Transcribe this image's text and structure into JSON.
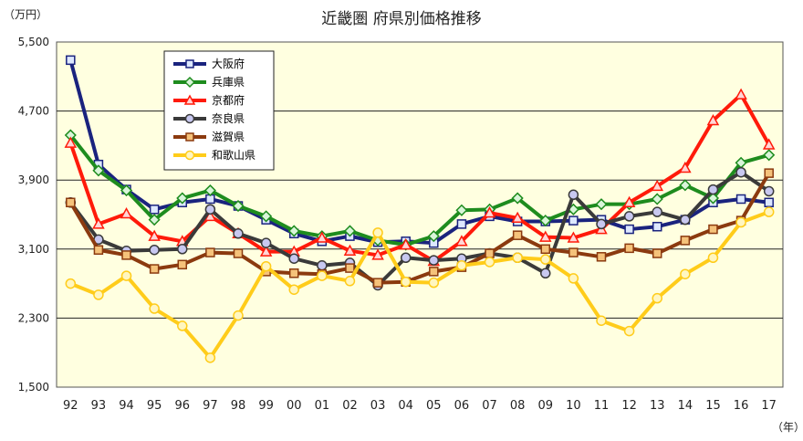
{
  "chart_data": {
    "type": "line",
    "title": "近畿圏 府県別価格推移",
    "y_unit": "（万円）",
    "x_unit": "（年）",
    "ylim": [
      1500,
      5500
    ],
    "y_ticks": [
      1500,
      2300,
      3100,
      3900,
      4700,
      5500
    ],
    "y_tick_labels": [
      "1,500",
      "2,300",
      "3,100",
      "3,900",
      "4,700",
      "5,500"
    ],
    "grid": true,
    "legend_position": "top-left",
    "categories": [
      "92",
      "93",
      "94",
      "95",
      "96",
      "97",
      "98",
      "99",
      "00",
      "01",
      "02",
      "03",
      "04",
      "05",
      "06",
      "07",
      "08",
      "09",
      "10",
      "11",
      "12",
      "13",
      "14",
      "15",
      "16",
      "17"
    ],
    "series": [
      {
        "name": "大阪府",
        "color": "#1a237e",
        "marker": "square",
        "marker_fill": "#dde8ff",
        "values": [
          5290,
          4080,
          3790,
          3560,
          3640,
          3680,
          3600,
          3440,
          3280,
          3190,
          3250,
          3180,
          3190,
          3170,
          3390,
          3480,
          3420,
          3420,
          3430,
          3440,
          3330,
          3360,
          3440,
          3640,
          3680,
          3640
        ]
      },
      {
        "name": "兵庫県",
        "color": "#1e8c1e",
        "marker": "diamond",
        "marker_fill": "#d9f5d9",
        "values": [
          4420,
          4010,
          3780,
          3440,
          3690,
          3780,
          3600,
          3480,
          3310,
          3250,
          3310,
          3200,
          3150,
          3250,
          3550,
          3560,
          3690,
          3430,
          3560,
          3620,
          3620,
          3680,
          3840,
          3690,
          4100,
          4190
        ]
      },
      {
        "name": "京都府",
        "color": "#ff1a0a",
        "marker": "triangle",
        "marker_fill": "#ffd6d6",
        "values": [
          4330,
          3390,
          3510,
          3250,
          3190,
          3480,
          3280,
          3070,
          3070,
          3230,
          3080,
          3030,
          3150,
          2960,
          3190,
          3520,
          3460,
          3240,
          3230,
          3330,
          3640,
          3830,
          4040,
          4590,
          4890,
          4310
        ]
      },
      {
        "name": "奈良県",
        "color": "#3a3a3a",
        "marker": "circle",
        "marker_fill": "#c8c8f0",
        "values": [
          3640,
          3210,
          3080,
          3090,
          3100,
          3560,
          3280,
          3170,
          2990,
          2910,
          2940,
          2680,
          3000,
          2970,
          2990,
          3050,
          3000,
          2820,
          3730,
          3390,
          3480,
          3530,
          3440,
          3790,
          3990,
          3770
        ]
      },
      {
        "name": "滋賀県",
        "color": "#8b3a0f",
        "marker": "square",
        "marker_fill": "#f5c27a",
        "values": [
          3640,
          3090,
          3030,
          2870,
          2920,
          3060,
          3050,
          2840,
          2820,
          2810,
          2880,
          2710,
          2720,
          2840,
          2890,
          3050,
          3260,
          3100,
          3060,
          3010,
          3110,
          3050,
          3200,
          3330,
          3430,
          3980
        ]
      },
      {
        "name": "和歌山県",
        "color": "#ffcc1a",
        "marker": "circle",
        "marker_fill": "#fff6c0",
        "values": [
          2700,
          2570,
          2790,
          2410,
          2210,
          1840,
          2330,
          2900,
          2630,
          2790,
          2730,
          3290,
          2720,
          2710,
          2910,
          2950,
          3000,
          2980,
          2760,
          2270,
          2150,
          2530,
          2810,
          3000,
          3410,
          3530
        ]
      }
    ]
  }
}
